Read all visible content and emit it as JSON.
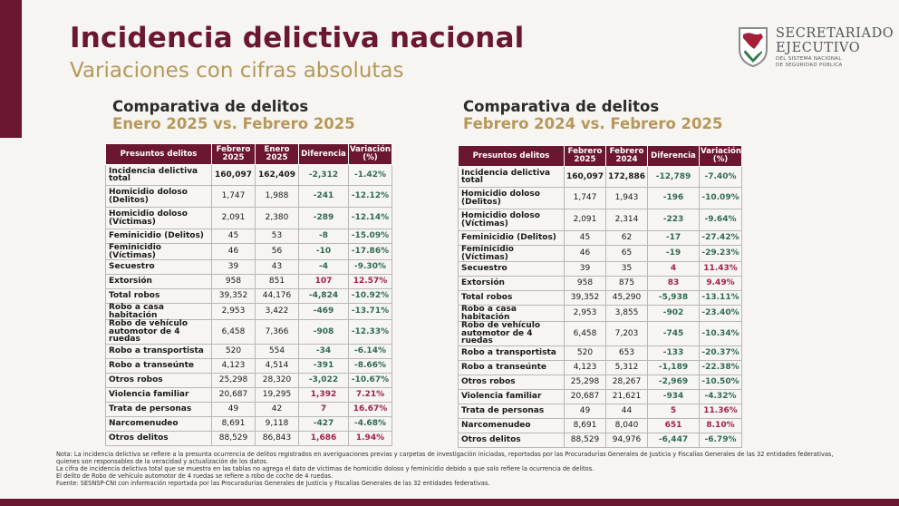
{
  "header": {
    "title": "Incidencia delictiva nacional",
    "subtitle": "Variaciones con cifras absolutas"
  },
  "logo": {
    "line1": "SECRETARIADO",
    "line2": "EJECUTIVO",
    "line3": "DEL SISTEMA NACIONAL",
    "line4": "DE SEGURIDAD PÚBLICA"
  },
  "left_section": {
    "title_line1": "Comparativa de delitos",
    "title_line2": "Enero 2025 vs. Febrero 2025",
    "columns": [
      "Presuntos delitos",
      "Febrero 2025",
      "Enero 2025",
      "Diferencia",
      "Variación (%)"
    ],
    "rows": [
      {
        "label": "Incidencia delictiva total",
        "a": "160,097",
        "b": "162,409",
        "diff": "-2,312",
        "var": "-1.42%",
        "bold": true
      },
      {
        "label": "Homicidio doloso (Delitos)",
        "a": "1,747",
        "b": "1,988",
        "diff": "-241",
        "var": "-12.12%"
      },
      {
        "label": "Homicidio doloso (Víctimas)",
        "a": "2,091",
        "b": "2,380",
        "diff": "-289",
        "var": "-12.14%"
      },
      {
        "label": "Feminicidio (Delitos)",
        "a": "45",
        "b": "53",
        "diff": "-8",
        "var": "-15.09%"
      },
      {
        "label": "Feminicidio (Víctimas)",
        "a": "46",
        "b": "56",
        "diff": "-10",
        "var": "-17.86%"
      },
      {
        "label": "Secuestro",
        "a": "39",
        "b": "43",
        "diff": "-4",
        "var": "-9.30%"
      },
      {
        "label": "Extorsión",
        "a": "958",
        "b": "851",
        "diff": "107",
        "var": "12.57%"
      },
      {
        "label": "Total robos",
        "a": "39,352",
        "b": "44,176",
        "diff": "-4,824",
        "var": "-10.92%"
      },
      {
        "label": "Robo a casa habitación",
        "a": "2,953",
        "b": "3,422",
        "diff": "-469",
        "var": "-13.71%"
      },
      {
        "label": "Robo de vehículo automotor de 4 ruedas",
        "a": "6,458",
        "b": "7,366",
        "diff": "-908",
        "var": "-12.33%"
      },
      {
        "label": "Robo a transportista",
        "a": "520",
        "b": "554",
        "diff": "-34",
        "var": "-6.14%"
      },
      {
        "label": "Robo a transeúnte",
        "a": "4,123",
        "b": "4,514",
        "diff": "-391",
        "var": "-8.66%"
      },
      {
        "label": "Otros robos",
        "a": "25,298",
        "b": "28,320",
        "diff": "-3,022",
        "var": "-10.67%"
      },
      {
        "label": "Violencia familiar",
        "a": "20,687",
        "b": "19,295",
        "diff": "1,392",
        "var": "7.21%"
      },
      {
        "label": "Trata de personas",
        "a": "49",
        "b": "42",
        "diff": "7",
        "var": "16.67%"
      },
      {
        "label": "Narcomenudeo",
        "a": "8,691",
        "b": "9,118",
        "diff": "-427",
        "var": "-4.68%"
      },
      {
        "label": "Otros delitos",
        "a": "88,529",
        "b": "86,843",
        "diff": "1,686",
        "var": "1.94%"
      }
    ]
  },
  "right_section": {
    "title_line1": "Comparativa de delitos",
    "title_line2": "Febrero 2024 vs. Febrero 2025",
    "columns": [
      "Presuntos delitos",
      "Febrero 2025",
      "Febrero 2024",
      "Diferencia",
      "Variación (%)"
    ],
    "rows": [
      {
        "label": "Incidencia delictiva total",
        "a": "160,097",
        "b": "172,886",
        "diff": "-12,789",
        "var": "-7.40%",
        "bold": true
      },
      {
        "label": "Homicidio doloso (Delitos)",
        "a": "1,747",
        "b": "1,943",
        "diff": "-196",
        "var": "-10.09%"
      },
      {
        "label": "Homicidio doloso (Víctimas)",
        "a": "2,091",
        "b": "2,314",
        "diff": "-223",
        "var": "-9.64%"
      },
      {
        "label": "Feminicidio (Delitos)",
        "a": "45",
        "b": "62",
        "diff": "-17",
        "var": "-27.42%"
      },
      {
        "label": "Feminicidio (Víctimas)",
        "a": "46",
        "b": "65",
        "diff": "-19",
        "var": "-29.23%"
      },
      {
        "label": "Secuestro",
        "a": "39",
        "b": "35",
        "diff": "4",
        "var": "11.43%"
      },
      {
        "label": "Extorsión",
        "a": "958",
        "b": "875",
        "diff": "83",
        "var": "9.49%"
      },
      {
        "label": "Total robos",
        "a": "39,352",
        "b": "45,290",
        "diff": "-5,938",
        "var": "-13.11%"
      },
      {
        "label": "Robo a casa habitación",
        "a": "2,953",
        "b": "3,855",
        "diff": "-902",
        "var": "-23.40%"
      },
      {
        "label": "Robo de vehículo automotor de 4 ruedas",
        "a": "6,458",
        "b": "7,203",
        "diff": "-745",
        "var": "-10.34%"
      },
      {
        "label": "Robo a transportista",
        "a": "520",
        "b": "653",
        "diff": "-133",
        "var": "-20.37%"
      },
      {
        "label": "Robo a transeúnte",
        "a": "4,123",
        "b": "5,312",
        "diff": "-1,189",
        "var": "-22.38%"
      },
      {
        "label": "Otros robos",
        "a": "25,298",
        "b": "28,267",
        "diff": "-2,969",
        "var": "-10.50%"
      },
      {
        "label": "Violencia familiar",
        "a": "20,687",
        "b": "21,621",
        "diff": "-934",
        "var": "-4.32%"
      },
      {
        "label": "Trata de personas",
        "a": "49",
        "b": "44",
        "diff": "5",
        "var": "11.36%"
      },
      {
        "label": "Narcomenudeo",
        "a": "8,691",
        "b": "8,040",
        "diff": "651",
        "var": "8.10%"
      },
      {
        "label": "Otros delitos",
        "a": "88,529",
        "b": "94,976",
        "diff": "-6,447",
        "var": "-6.79%"
      }
    ]
  },
  "notes": [
    "Nota: La incidencia delictiva se refiere a la presunta ocurrencia de delitos registrados en averiguaciones previas y carpetas de investigación iniciadas, reportadas por las Procuradurías Generales de Justicia y Fiscalías Generales de las 32 entidades federativas,",
    "quienes son responsables de la veracidad y actualización de los datos.",
    "La cifra de incidencia delictiva total que se muestra en las tablas no agrega el dato de víctimas de homicidio doloso y feminicidio debido a que solo refiere la ocurrencia de delitos.",
    "El delito de Robo de vehículo automotor de 4 ruedas se refiere a robo de coche de 4 ruedas.",
    "Fuente: SESNSP-CNI con información reportada por las Procuradurías Generales de Justicia y Fiscalías Generales de las 32 entidades federativas."
  ],
  "colors": {
    "brand": "#6b1730",
    "gold": "#b79858",
    "negative": "#2f6b52",
    "positive": "#a32048"
  }
}
